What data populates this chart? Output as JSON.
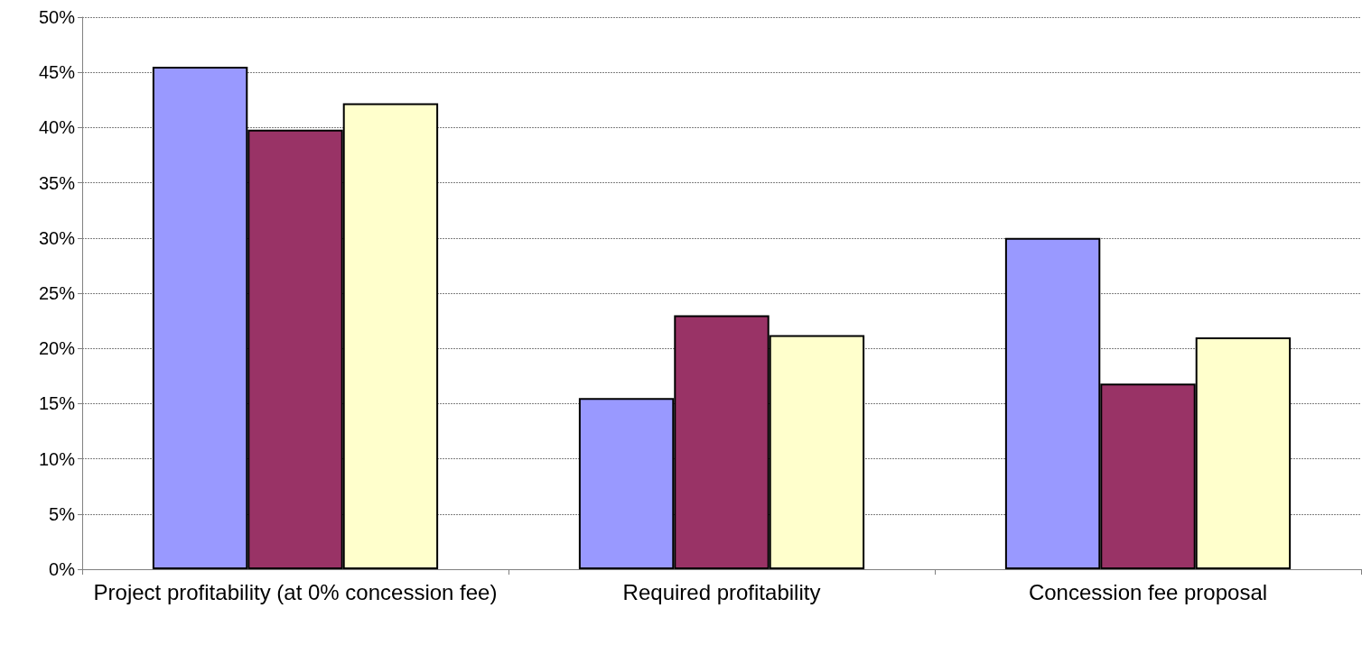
{
  "chart_data": {
    "type": "bar",
    "categories": [
      "Project profitability (at 0% concession fee)",
      "Required profitability",
      "Concession fee proposal"
    ],
    "series": [
      {
        "color": "#9999ff",
        "values": [
          45.5,
          15.5,
          30.0
        ]
      },
      {
        "color": "#993366",
        "values": [
          39.8,
          23.0,
          16.8
        ]
      },
      {
        "color": "#ffffcc",
        "values": [
          42.2,
          21.2,
          21.0
        ]
      }
    ],
    "ylim": [
      0,
      50
    ],
    "yticks": [
      {
        "value": 0,
        "label": "0%"
      },
      {
        "value": 5,
        "label": "5%"
      },
      {
        "value": 10,
        "label": "10%"
      },
      {
        "value": 15,
        "label": "15%"
      },
      {
        "value": 20,
        "label": "20%"
      },
      {
        "value": 25,
        "label": "25%"
      },
      {
        "value": 30,
        "label": "30%"
      },
      {
        "value": 35,
        "label": "35%"
      },
      {
        "value": 40,
        "label": "40%"
      },
      {
        "value": 45,
        "label": "45%"
      },
      {
        "value": 50,
        "label": "50%"
      }
    ],
    "grid": "y"
  }
}
